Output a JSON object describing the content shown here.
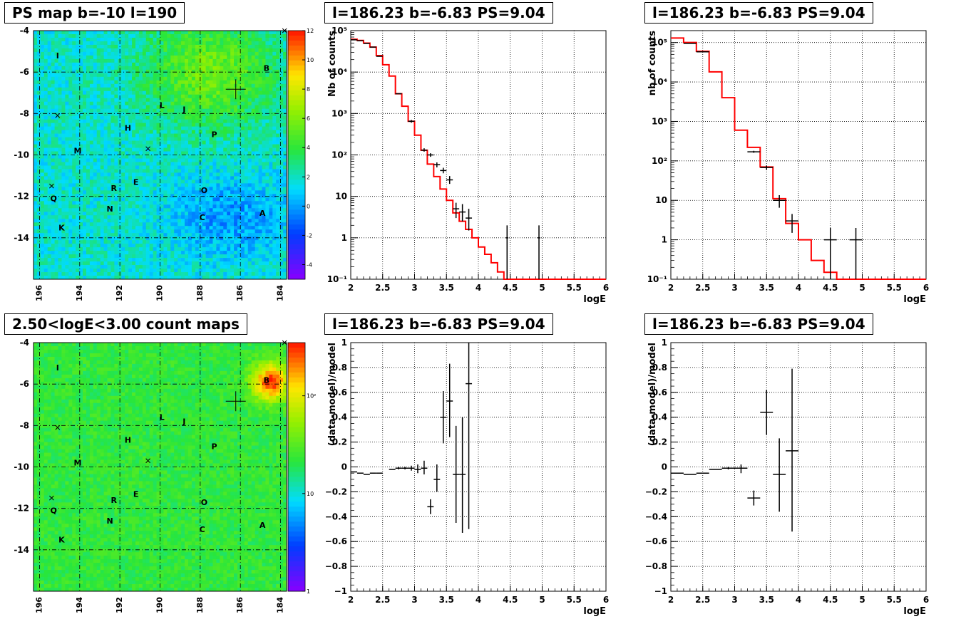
{
  "panels": {
    "map1": {
      "title": "PS map b=-10 l=190"
    },
    "map2": {
      "title": "2.50<logE<3.00 count maps"
    },
    "spec1": {
      "title": "l=186.23 b=-6.83 PS=9.04"
    },
    "spec2": {
      "title": "l=186.23 b=-6.83 PS=9.04"
    },
    "res1": {
      "title": "l=186.23 b=-6.83 PS=9.04"
    },
    "res2": {
      "title": "l=186.23 b=-6.83 PS=9.04"
    }
  },
  "colors": {
    "model": "#ff0000",
    "data": "#000000",
    "frame": "#000000"
  },
  "chart_data": [
    {
      "id": "map1",
      "type": "heatmap",
      "title": "PS map b=-10 l=190",
      "x_ticks": [
        "196",
        "194",
        "192",
        "190",
        "188",
        "186",
        "184"
      ],
      "y_ticks": [
        "-4",
        "-6",
        "-8",
        "-10",
        "-12",
        "-14"
      ],
      "xlim": [
        196.3,
        183.7
      ],
      "ylim": [
        -16.0,
        -4.0
      ],
      "grid": true,
      "colorbar": {
        "scale": "linear",
        "range": [
          -5,
          12
        ],
        "ticks": [
          "12",
          "10",
          "8",
          "6",
          "4",
          "2",
          "0",
          "-2",
          "-4"
        ]
      },
      "sources": [
        {
          "label": "I",
          "l": 195.1,
          "b": -5.2
        },
        {
          "label": "B",
          "l": 184.7,
          "b": -5.8
        },
        {
          "label": "L",
          "l": 189.9,
          "b": -7.6
        },
        {
          "label": "J",
          "l": 188.8,
          "b": -7.8
        },
        {
          "label": "H",
          "l": 191.6,
          "b": -8.7
        },
        {
          "label": "P",
          "l": 187.3,
          "b": -9.0
        },
        {
          "label": "M",
          "l": 194.1,
          "b": -9.8
        },
        {
          "label": "E",
          "l": 191.2,
          "b": -11.3
        },
        {
          "label": "R",
          "l": 192.3,
          "b": -11.6
        },
        {
          "label": "O",
          "l": 187.8,
          "b": -11.7
        },
        {
          "label": "Q",
          "l": 195.3,
          "b": -12.1
        },
        {
          "label": "N",
          "l": 192.5,
          "b": -12.6
        },
        {
          "label": "C",
          "l": 187.9,
          "b": -13.0
        },
        {
          "label": "A",
          "l": 184.9,
          "b": -12.8
        },
        {
          "label": "K",
          "l": 194.9,
          "b": -13.5
        }
      ],
      "crosses": [
        {
          "l": 195.1,
          "b": -8.1
        },
        {
          "l": 190.6,
          "b": -9.7
        },
        {
          "l": 195.4,
          "b": -11.5
        },
        {
          "l": 183.8,
          "b": -4.0
        }
      ],
      "target": {
        "l": 186.23,
        "b": -6.83
      }
    },
    {
      "id": "map2",
      "type": "heatmap",
      "title": "2.50<logE<3.00 count maps",
      "x_ticks": [
        "196",
        "194",
        "192",
        "190",
        "188",
        "186",
        "184"
      ],
      "y_ticks": [
        "-4",
        "-6",
        "-8",
        "-10",
        "-12",
        "-14"
      ],
      "xlim": [
        196.3,
        183.7
      ],
      "ylim": [
        -16.0,
        -4.0
      ],
      "grid": true,
      "colorbar": {
        "scale": "log",
        "range": [
          1,
          350
        ],
        "ticks": [
          "10²",
          "10",
          "1"
        ]
      },
      "sources": [
        {
          "label": "I",
          "l": 195.1,
          "b": -5.2
        },
        {
          "label": "B",
          "l": 184.7,
          "b": -5.8
        },
        {
          "label": "L",
          "l": 189.9,
          "b": -7.6
        },
        {
          "label": "J",
          "l": 188.8,
          "b": -7.8
        },
        {
          "label": "H",
          "l": 191.6,
          "b": -8.7
        },
        {
          "label": "P",
          "l": 187.3,
          "b": -9.0
        },
        {
          "label": "M",
          "l": 194.1,
          "b": -9.8
        },
        {
          "label": "E",
          "l": 191.2,
          "b": -11.3
        },
        {
          "label": "R",
          "l": 192.3,
          "b": -11.6
        },
        {
          "label": "O",
          "l": 187.8,
          "b": -11.7
        },
        {
          "label": "Q",
          "l": 195.3,
          "b": -12.1
        },
        {
          "label": "N",
          "l": 192.5,
          "b": -12.6
        },
        {
          "label": "C",
          "l": 187.9,
          "b": -13.0
        },
        {
          "label": "A",
          "l": 184.9,
          "b": -12.8
        },
        {
          "label": "K",
          "l": 194.9,
          "b": -13.5
        }
      ],
      "crosses": [
        {
          "l": 195.1,
          "b": -8.1
        },
        {
          "l": 190.6,
          "b": -9.7
        },
        {
          "l": 195.4,
          "b": -11.5
        },
        {
          "l": 183.8,
          "b": -4.0
        }
      ],
      "target": {
        "l": 186.23,
        "b": -6.83
      }
    },
    {
      "id": "spec1",
      "type": "line",
      "title": "l=186.23 b=-6.83 PS=9.04",
      "xlabel": "logE",
      "ylabel": "Nb of counts",
      "xlim": [
        2,
        6
      ],
      "ylim": [
        0.1,
        100000
      ],
      "yscale": "log",
      "x_ticks": [
        "2",
        "2.5",
        "3",
        "3.5",
        "4",
        "4.5",
        "5",
        "5.5",
        "6"
      ],
      "y_ticks": [
        "10⁻¹",
        "1",
        "10",
        "10²",
        "10³",
        "10⁴",
        "10⁵"
      ],
      "grid": true,
      "model_edges": [
        2.0,
        2.1,
        2.2,
        2.3,
        2.4,
        2.5,
        2.6,
        2.7,
        2.8,
        2.9,
        3.0,
        3.1,
        3.2,
        3.3,
        3.4,
        3.5,
        3.6,
        3.7,
        3.8,
        3.9,
        4.0,
        4.1,
        4.2,
        4.3,
        4.4,
        4.5,
        6.0
      ],
      "model_values": [
        62000,
        58000,
        50000,
        40000,
        25000,
        15000,
        8000,
        3000,
        1500,
        650,
        300,
        130,
        60,
        30,
        15,
        8,
        4,
        2.5,
        1.6,
        1,
        0.6,
        0.4,
        0.25,
        0.15,
        0.1,
        0.1
      ],
      "points": [
        {
          "x": 2.05,
          "y": 60000,
          "xerr": 0.05,
          "ylo": 60000,
          "yhi": 60000
        },
        {
          "x": 2.15,
          "y": 57000,
          "xerr": 0.05,
          "ylo": 57000,
          "yhi": 57000
        },
        {
          "x": 2.25,
          "y": 49000,
          "xerr": 0.05,
          "ylo": 49000,
          "yhi": 49000
        },
        {
          "x": 2.35,
          "y": 40000,
          "xerr": 0.05,
          "ylo": 40000,
          "yhi": 40000
        },
        {
          "x": 2.45,
          "y": 24000,
          "xerr": 0.05,
          "ylo": 24000,
          "yhi": 24000
        },
        {
          "x": 2.75,
          "y": 3000,
          "xerr": 0.05,
          "ylo": 3000,
          "yhi": 3000
        },
        {
          "x": 2.95,
          "y": 650,
          "xerr": 0.05,
          "ylo": 600,
          "yhi": 700
        },
        {
          "x": 3.15,
          "y": 130,
          "xerr": 0.05,
          "ylo": 120,
          "yhi": 145
        },
        {
          "x": 3.25,
          "y": 100,
          "xerr": 0.05,
          "ylo": 90,
          "yhi": 110
        },
        {
          "x": 3.35,
          "y": 58,
          "xerr": 0.05,
          "ylo": 50,
          "yhi": 66
        },
        {
          "x": 3.45,
          "y": 42,
          "xerr": 0.05,
          "ylo": 36,
          "yhi": 49
        },
        {
          "x": 3.55,
          "y": 25,
          "xerr": 0.05,
          "ylo": 20,
          "yhi": 31
        },
        {
          "x": 3.65,
          "y": 5,
          "xerr": 0.05,
          "ylo": 3,
          "yhi": 7
        },
        {
          "x": 3.75,
          "y": 4.2,
          "xerr": 0.05,
          "ylo": 2.5,
          "yhi": 6.5
        },
        {
          "x": 3.85,
          "y": 3,
          "xerr": 0.05,
          "ylo": 1.5,
          "yhi": 5
        },
        {
          "x": 4.45,
          "y": 1,
          "xerr": 0.02,
          "ylo": 0.1,
          "yhi": 2
        },
        {
          "x": 4.95,
          "y": 1,
          "xerr": 0.02,
          "ylo": 0.1,
          "yhi": 2
        }
      ]
    },
    {
      "id": "spec2",
      "type": "line",
      "title": "l=186.23 b=-6.83 PS=9.04",
      "xlabel": "logE",
      "ylabel": "nb of counts",
      "xlim": [
        2,
        6
      ],
      "ylim": [
        0.1,
        200000
      ],
      "yscale": "log",
      "x_ticks": [
        "2",
        "2.5",
        "3",
        "3.5",
        "4",
        "4.5",
        "5",
        "5.5",
        "6"
      ],
      "y_ticks": [
        "10⁻¹",
        "1",
        "10",
        "10²",
        "10³",
        "10⁴",
        "10⁵"
      ],
      "grid": true,
      "model_edges": [
        2.0,
        2.2,
        2.4,
        2.6,
        2.8,
        3.0,
        3.2,
        3.4,
        3.6,
        3.8,
        4.0,
        4.2,
        4.4,
        4.6,
        6.0
      ],
      "model_values": [
        130000,
        100000,
        60000,
        18000,
        4000,
        600,
        220,
        70,
        11,
        2.6,
        1,
        0.3,
        0.15,
        0.1
      ],
      "points": [
        {
          "x": 2.3,
          "y": 95000,
          "xerr": 0.1,
          "ylo": 95000,
          "yhi": 95000
        },
        {
          "x": 2.5,
          "y": 58000,
          "xerr": 0.1,
          "ylo": 58000,
          "yhi": 58000
        },
        {
          "x": 3.3,
          "y": 170,
          "xerr": 0.1,
          "ylo": 160,
          "yhi": 180
        },
        {
          "x": 3.5,
          "y": 68,
          "xerr": 0.1,
          "ylo": 60,
          "yhi": 76
        },
        {
          "x": 3.7,
          "y": 10,
          "xerr": 0.1,
          "ylo": 6.5,
          "yhi": 13.5
        },
        {
          "x": 3.9,
          "y": 3,
          "xerr": 0.1,
          "ylo": 1.5,
          "yhi": 4.5
        },
        {
          "x": 4.5,
          "y": 1,
          "xerr": 0.1,
          "ylo": 0.1,
          "yhi": 2
        },
        {
          "x": 4.9,
          "y": 1,
          "xerr": 0.1,
          "ylo": 0.1,
          "yhi": 2
        }
      ]
    },
    {
      "id": "res1",
      "type": "scatter",
      "title": "l=186.23 b=-6.83 PS=9.04",
      "xlabel": "logE",
      "ylabel": "(data-model)/model",
      "xlim": [
        2,
        6
      ],
      "ylim": [
        -1,
        1
      ],
      "x_ticks": [
        "2",
        "2.5",
        "3",
        "3.5",
        "4",
        "4.5",
        "5",
        "5.5",
        "6"
      ],
      "y_ticks": [
        "−1",
        "−0.8",
        "−0.6",
        "−0.4",
        "−0.2",
        "0",
        "0.2",
        "0.4",
        "0.6",
        "0.8",
        "1"
      ],
      "grid": true,
      "points": [
        {
          "x": 2.05,
          "y": -0.04,
          "xerr": 0.05,
          "ylo": -0.04,
          "yhi": -0.04
        },
        {
          "x": 2.15,
          "y": -0.05,
          "xerr": 0.05,
          "ylo": -0.05,
          "yhi": -0.05
        },
        {
          "x": 2.25,
          "y": -0.06,
          "xerr": 0.05,
          "ylo": -0.06,
          "yhi": -0.06
        },
        {
          "x": 2.35,
          "y": -0.05,
          "xerr": 0.05,
          "ylo": -0.05,
          "yhi": -0.05
        },
        {
          "x": 2.45,
          "y": -0.05,
          "xerr": 0.05,
          "ylo": -0.05,
          "yhi": -0.05
        },
        {
          "x": 2.65,
          "y": -0.02,
          "xerr": 0.05,
          "ylo": -0.02,
          "yhi": -0.02
        },
        {
          "x": 2.75,
          "y": -0.01,
          "xerr": 0.05,
          "ylo": -0.02,
          "yhi": 0.0
        },
        {
          "x": 2.85,
          "y": -0.01,
          "xerr": 0.05,
          "ylo": -0.02,
          "yhi": 0.0
        },
        {
          "x": 2.95,
          "y": -0.01,
          "xerr": 0.05,
          "ylo": -0.03,
          "yhi": 0.01
        },
        {
          "x": 3.05,
          "y": -0.02,
          "xerr": 0.05,
          "ylo": -0.05,
          "yhi": 0.02
        },
        {
          "x": 3.15,
          "y": -0.01,
          "xerr": 0.05,
          "ylo": -0.06,
          "yhi": 0.05
        },
        {
          "x": 3.25,
          "y": -0.32,
          "xerr": 0.05,
          "ylo": -0.38,
          "yhi": -0.26
        },
        {
          "x": 3.35,
          "y": -0.1,
          "xerr": 0.05,
          "ylo": -0.2,
          "yhi": 0.02
        },
        {
          "x": 3.45,
          "y": 0.4,
          "xerr": 0.05,
          "ylo": 0.19,
          "yhi": 0.61
        },
        {
          "x": 3.55,
          "y": 0.53,
          "xerr": 0.05,
          "ylo": 0.24,
          "yhi": 0.83
        },
        {
          "x": 3.65,
          "y": -0.06,
          "xerr": 0.05,
          "ylo": -0.45,
          "yhi": 0.33
        },
        {
          "x": 3.75,
          "y": -0.06,
          "xerr": 0.05,
          "ylo": -0.53,
          "yhi": 0.4
        },
        {
          "x": 3.85,
          "y": 0.67,
          "xerr": 0.05,
          "ylo": -0.5,
          "yhi": 1.0
        }
      ]
    },
    {
      "id": "res2",
      "type": "scatter",
      "title": "l=186.23 b=-6.83 PS=9.04",
      "xlabel": "logE",
      "ylabel": "(data-model)/model",
      "xlim": [
        2,
        6
      ],
      "ylim": [
        -1,
        1
      ],
      "x_ticks": [
        "2",
        "2.5",
        "3",
        "3.5",
        "4",
        "4.5",
        "5",
        "5.5",
        "6"
      ],
      "y_ticks": [
        "−1",
        "−0.8",
        "−0.6",
        "−0.4",
        "−0.2",
        "0",
        "0.2",
        "0.4",
        "0.6",
        "0.8",
        "1"
      ],
      "grid": true,
      "points": [
        {
          "x": 2.1,
          "y": -0.05,
          "xerr": 0.1,
          "ylo": -0.05,
          "yhi": -0.05
        },
        {
          "x": 2.3,
          "y": -0.06,
          "xerr": 0.1,
          "ylo": -0.06,
          "yhi": -0.06
        },
        {
          "x": 2.5,
          "y": -0.05,
          "xerr": 0.1,
          "ylo": -0.05,
          "yhi": -0.05
        },
        {
          "x": 2.7,
          "y": -0.02,
          "xerr": 0.1,
          "ylo": -0.02,
          "yhi": -0.02
        },
        {
          "x": 2.9,
          "y": -0.01,
          "xerr": 0.1,
          "ylo": -0.02,
          "yhi": 0.0
        },
        {
          "x": 3.1,
          "y": -0.01,
          "xerr": 0.1,
          "ylo": -0.05,
          "yhi": 0.02
        },
        {
          "x": 3.3,
          "y": -0.25,
          "xerr": 0.1,
          "ylo": -0.31,
          "yhi": -0.19
        },
        {
          "x": 3.5,
          "y": 0.44,
          "xerr": 0.1,
          "ylo": 0.26,
          "yhi": 0.62
        },
        {
          "x": 3.7,
          "y": -0.06,
          "xerr": 0.1,
          "ylo": -0.36,
          "yhi": 0.23
        },
        {
          "x": 3.9,
          "y": 0.13,
          "xerr": 0.1,
          "ylo": -0.52,
          "yhi": 0.79
        }
      ]
    }
  ]
}
